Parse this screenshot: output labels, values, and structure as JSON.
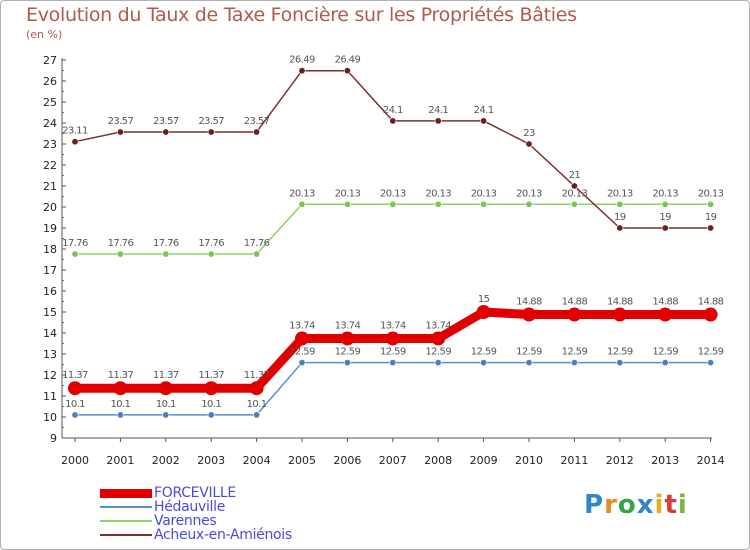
{
  "title": "Evolution du Taux de Taxe Foncière sur les Propriétés Bâties",
  "unit_label": "(en %)",
  "logo_text": "Proxiti",
  "chart_data": {
    "type": "line",
    "title": "Evolution du Taux de Taxe Foncière sur les Propriétés Bâties",
    "ylabel": "(en %)",
    "xlabel": "",
    "x": [
      "2000",
      "2001",
      "2002",
      "2003",
      "2004",
      "2005",
      "2006",
      "2007",
      "2008",
      "2009",
      "2010",
      "2011",
      "2012",
      "2013",
      "2014"
    ],
    "ylim": [
      9,
      27
    ],
    "yticks": [
      9,
      10,
      11,
      12,
      13,
      14,
      15,
      16,
      17,
      18,
      19,
      20,
      21,
      22,
      23,
      24,
      25,
      26,
      27
    ],
    "grid": false,
    "legend_position": "bottom-left",
    "series": [
      {
        "name": "FORCEVILLE",
        "color": "#e00000",
        "emphasis": true,
        "values": [
          11.37,
          11.37,
          11.37,
          11.37,
          11.37,
          13.74,
          13.74,
          13.74,
          13.74,
          15,
          14.88,
          14.88,
          14.88,
          14.88,
          14.88
        ],
        "labels": [
          "11.37",
          "11.37",
          "11.37",
          "11.37",
          "11.37",
          "13.74",
          "13.74",
          "13.74",
          "13.74",
          "15",
          "14.88",
          "14.88",
          "14.88",
          "14.88",
          "14.88"
        ]
      },
      {
        "name": "Hédauville",
        "color": "#5a8fc8",
        "marker": "#4a7fc0",
        "values": [
          10.1,
          10.1,
          10.1,
          10.1,
          10.1,
          12.59,
          12.59,
          12.59,
          12.59,
          12.59,
          12.59,
          12.59,
          12.59,
          12.59,
          12.59
        ],
        "labels": [
          "10.1",
          "10.1",
          "10.1",
          "10.1",
          "10.1",
          "12.59",
          "12.59",
          "12.59",
          "12.59",
          "12.59",
          "12.59",
          "12.59",
          "12.59",
          "12.59",
          "12.59"
        ]
      },
      {
        "name": "Varennes",
        "color": "#8fd06a",
        "marker": "#7cc456",
        "values": [
          17.76,
          17.76,
          17.76,
          17.76,
          17.76,
          20.13,
          20.13,
          20.13,
          20.13,
          20.13,
          20.13,
          20.13,
          20.13,
          20.13,
          20.13
        ],
        "labels": [
          "17.76",
          "17.76",
          "17.76",
          "17.76",
          "17.76",
          "20.13",
          "20.13",
          "20.13",
          "20.13",
          "20.13",
          "20.13",
          "20.13",
          "20.13",
          "20.13",
          "20.13"
        ]
      },
      {
        "name": "Acheux-en-Amiénois",
        "color": "#7a2e2e",
        "marker": "#6a2020",
        "values": [
          23.11,
          23.57,
          23.57,
          23.57,
          23.57,
          26.49,
          26.49,
          24.1,
          24.1,
          24.1,
          23,
          21,
          19,
          19,
          19
        ],
        "labels": [
          "23.11",
          "23.57",
          "23.57",
          "23.57",
          "23.57",
          "26.49",
          "26.49",
          "24.1",
          "24.1",
          "24.1",
          "23",
          "21",
          "19",
          "19",
          "19"
        ]
      }
    ]
  }
}
